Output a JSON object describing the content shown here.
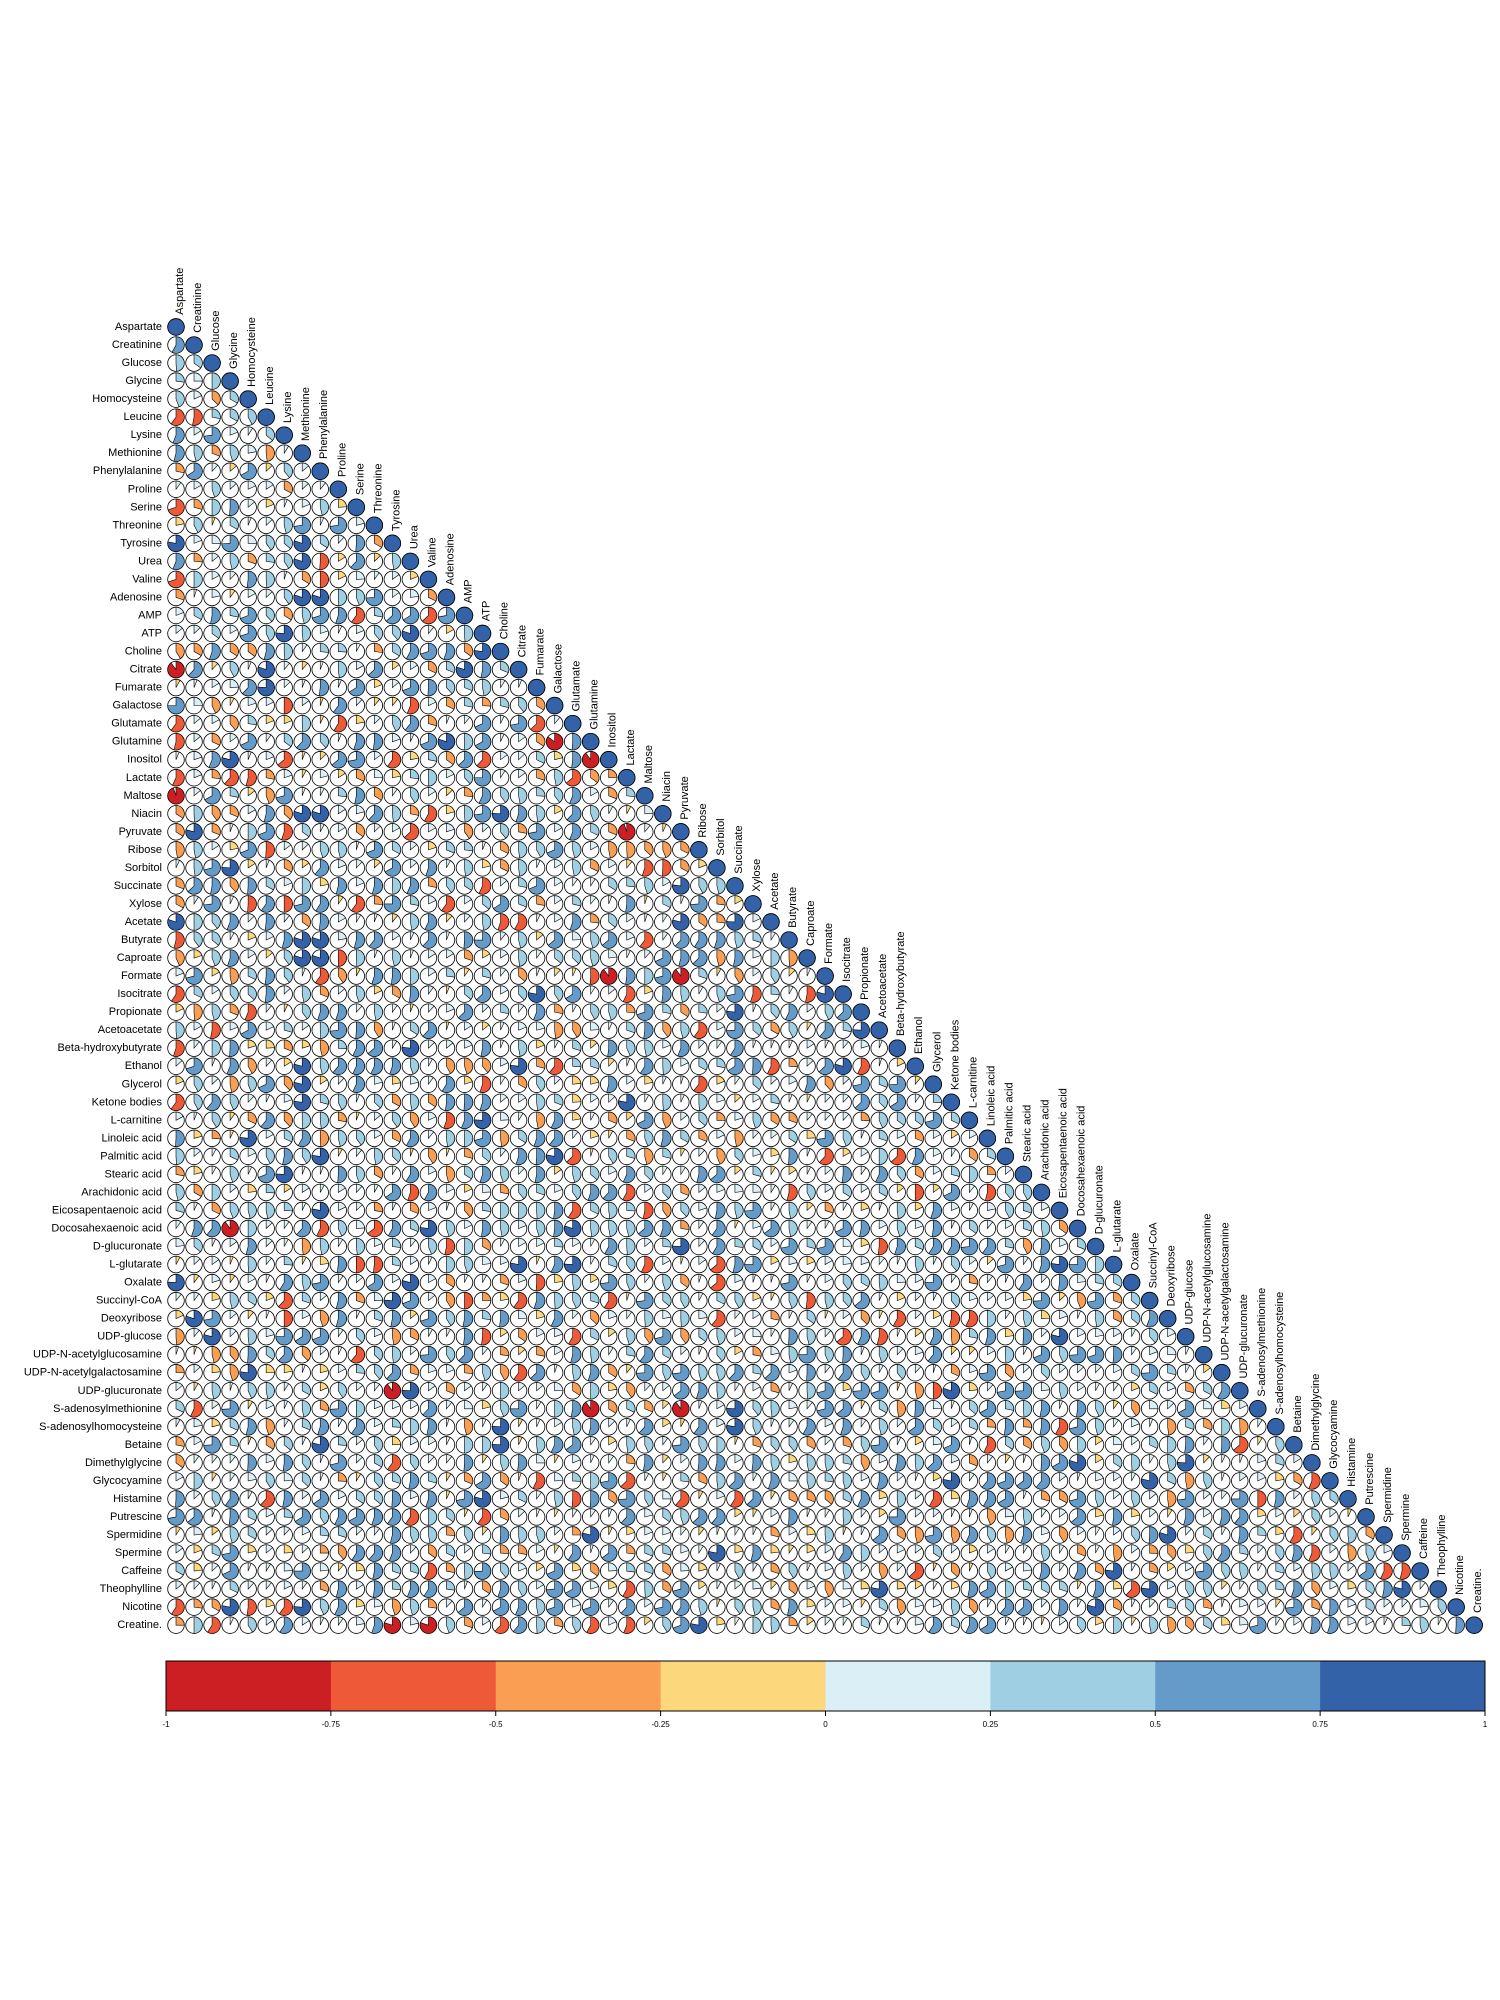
{
  "chart_data": {
    "type": "heatmap",
    "subtype": "correlation-pie-lower-triangle",
    "title": "",
    "xlabel": "",
    "ylabel": "",
    "variables": [
      "Aspartate",
      "Creatinine",
      "Glucose",
      "Glycine",
      "Homocysteine",
      "Leucine",
      "Lysine",
      "Methionine",
      "Phenylalanine",
      "Proline",
      "Serine",
      "Threonine",
      "Tyrosine",
      "Urea",
      "Valine",
      "Adenosine",
      "AMP",
      "ATP",
      "Choline",
      "Citrate",
      "Fumarate",
      "Galactose",
      "Glutamate",
      "Glutamine",
      "Inositol",
      "Lactate",
      "Maltose",
      "Niacin",
      "Pyruvate",
      "Ribose",
      "Sorbitol",
      "Succinate",
      "Xylose",
      "Acetate",
      "Butyrate",
      "Caproate",
      "Formate",
      "Isocitrate",
      "Propionate",
      "Acetoacetate",
      "Beta-hydroxybutyrate",
      "Ethanol",
      "Glycerol",
      "Ketone bodies",
      "L-carnitine",
      "Linoleic acid",
      "Palmitic acid",
      "Stearic acid",
      "Arachidonic acid",
      "Eicosapentaenoic acid",
      "Docosahexaenoic acid",
      "D-glucuronate",
      "L-glutarate",
      "Oxalate",
      "Succinyl-CoA",
      "Deoxyribose",
      "UDP-glucose",
      "UDP-N-acetylglucosamine",
      "UDP-N-acetylgalactosamine",
      "UDP-glucuronate",
      "S-adenosylmethionine",
      "S-adenosylhomocysteine",
      "Betaine",
      "Dimethylglycine",
      "Glycocyamine",
      "Histamine",
      "Putrescine",
      "Spermidine",
      "Spermine",
      "Caffeine",
      "Theophylline",
      "Nicotine",
      "Creatine."
    ],
    "value_range": [
      -1,
      1
    ],
    "colorbar": {
      "ticks": [
        "-1",
        "-0.75",
        "-0.5",
        "-0.25",
        "0",
        "0.25",
        "0.5",
        "0.75",
        "1"
      ],
      "bins": [
        -1,
        -0.75,
        -0.5,
        -0.25,
        0,
        0.25,
        0.5,
        0.75,
        1
      ],
      "colors": [
        "#CC1F24",
        "#EE5A37",
        "#F99E52",
        "#FDD77B",
        "#DBF0F6",
        "#9ECFE3",
        "#659BC9",
        "#3362A9"
      ]
    },
    "highlighted_cells": [
      {
        "row": "Leucine",
        "col": "Aspartate",
        "r": -0.6
      },
      {
        "row": "Serine",
        "col": "Aspartate",
        "r": -0.7
      },
      {
        "row": "Valine",
        "col": "Aspartate",
        "r": -0.7
      },
      {
        "row": "Citrate",
        "col": "Aspartate",
        "r": -0.9
      },
      {
        "row": "Glutamate",
        "col": "Aspartate",
        "r": -0.6
      },
      {
        "row": "Maltose",
        "col": "Aspartate",
        "r": -0.95
      },
      {
        "row": "Ketone bodies",
        "col": "Aspartate",
        "r": -0.6
      },
      {
        "row": "Citrate",
        "col": "Leucine",
        "r": 0.8
      },
      {
        "row": "Tyrosine",
        "col": "Methionine",
        "r": 0.8
      },
      {
        "row": "Urea",
        "col": "Methionine",
        "r": 0.8
      },
      {
        "row": "Adenosine",
        "col": "Methionine",
        "r": 0.8
      },
      {
        "row": "Adenosine",
        "col": "Phenylalanine",
        "r": 0.8
      },
      {
        "row": "Niacin",
        "col": "Methionine",
        "r": 0.8
      },
      {
        "row": "Niacin",
        "col": "Phenylalanine",
        "r": 0.8
      },
      {
        "row": "Butyrate",
        "col": "Methionine",
        "r": 0.8
      },
      {
        "row": "Butyrate",
        "col": "Phenylalanine",
        "r": 0.8
      },
      {
        "row": "Caproate",
        "col": "Methionine",
        "r": 0.8
      },
      {
        "row": "Caproate",
        "col": "Phenylalanine",
        "r": 0.8
      },
      {
        "row": "Glutamine",
        "col": "Galactose",
        "r": -0.85
      },
      {
        "row": "Inositol",
        "col": "Glutamine",
        "r": -0.9
      },
      {
        "row": "Pyruvate",
        "col": "Lactate",
        "r": -0.95
      },
      {
        "row": "Formate",
        "col": "Inositol",
        "r": -0.9
      },
      {
        "row": "Formate",
        "col": "Pyruvate",
        "r": -0.9
      },
      {
        "row": "Docosahexaenoic acid",
        "col": "Glycine",
        "r": -0.9
      },
      {
        "row": "UDP-glucuronate",
        "col": "Tyrosine",
        "r": -0.9
      },
      {
        "row": "S-adenosylmethionine",
        "col": "Glutamine",
        "r": -0.9
      },
      {
        "row": "S-adenosylmethionine",
        "col": "Pyruvate",
        "r": -0.9
      },
      {
        "row": "Creatine.",
        "col": "Tyrosine",
        "r": -0.8
      },
      {
        "row": "Creatine.",
        "col": "Valine",
        "r": -0.8
      },
      {
        "row": "Deoxyribose",
        "col": "Creatinine",
        "r": 0.8
      }
    ]
  }
}
